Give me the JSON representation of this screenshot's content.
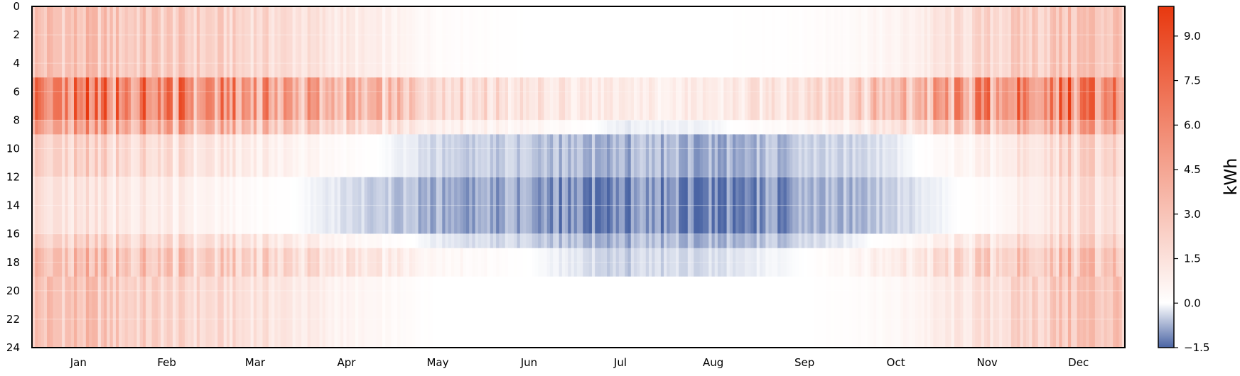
{
  "chart_data": {
    "type": "heatmap",
    "title": "",
    "xlabel": "",
    "ylabel": "",
    "colorbar_label": "kWh",
    "x_ticks": [
      "Jan",
      "Feb",
      "Mar",
      "Apr",
      "May",
      "Jun",
      "Jul",
      "Aug",
      "Sep",
      "Oct",
      "Nov",
      "Dec"
    ],
    "x_range_days": [
      0,
      365
    ],
    "y_ticks": [
      "0",
      "2",
      "4",
      "6",
      "8",
      "10",
      "12",
      "14",
      "16",
      "18",
      "20",
      "22",
      "24"
    ],
    "y_range_hours": [
      0,
      24
    ],
    "y_inverted": true,
    "colorbar_ticks": [
      "9.0",
      "7.5",
      "6.0",
      "4.5",
      "3.0",
      "1.5",
      "0.0",
      "−1.5"
    ],
    "color_range": [
      -1.5,
      10
    ],
    "colors": {
      "negative": "#4a64a4",
      "zero": "#ffffff",
      "positive": "#e8380f"
    },
    "grid": true,
    "monthly_hourly_mean_kWh": {
      "hours": [
        "0-5",
        "5-8",
        "8-9",
        "9-12",
        "12-16",
        "16-17",
        "17-19",
        "19-24"
      ],
      "rows": [
        [
          3.0,
          7.0,
          5.0,
          2.5,
          1.5,
          2.5,
          3.5,
          3.0
        ],
        [
          2.5,
          6.5,
          4.5,
          1.8,
          1.0,
          2.0,
          3.0,
          2.0
        ],
        [
          2.0,
          5.5,
          3.5,
          1.0,
          0.2,
          1.5,
          2.5,
          1.5
        ],
        [
          1.0,
          4.0,
          2.0,
          0.2,
          -0.3,
          0.5,
          1.5,
          0.5
        ],
        [
          0.2,
          2.5,
          1.0,
          -0.4,
          -0.8,
          -0.2,
          0.5,
          0.0
        ],
        [
          0.0,
          1.5,
          0.5,
          -0.6,
          -1.0,
          -0.5,
          0.0,
          0.0
        ],
        [
          0.0,
          1.0,
          -0.2,
          -0.8,
          -1.3,
          -0.8,
          -0.5,
          0.0
        ],
        [
          0.0,
          1.0,
          -0.1,
          -0.8,
          -1.2,
          -0.7,
          -0.3,
          0.0
        ],
        [
          0.1,
          2.0,
          0.5,
          -0.6,
          -1.0,
          -0.5,
          0.0,
          0.0
        ],
        [
          0.5,
          3.5,
          1.5,
          -0.2,
          -0.4,
          0.2,
          1.0,
          0.3
        ],
        [
          2.0,
          6.0,
          3.5,
          0.8,
          0.2,
          1.5,
          2.5,
          1.5
        ],
        [
          3.0,
          7.0,
          5.0,
          2.5,
          2.0,
          2.5,
          3.5,
          3.0
        ]
      ]
    }
  }
}
